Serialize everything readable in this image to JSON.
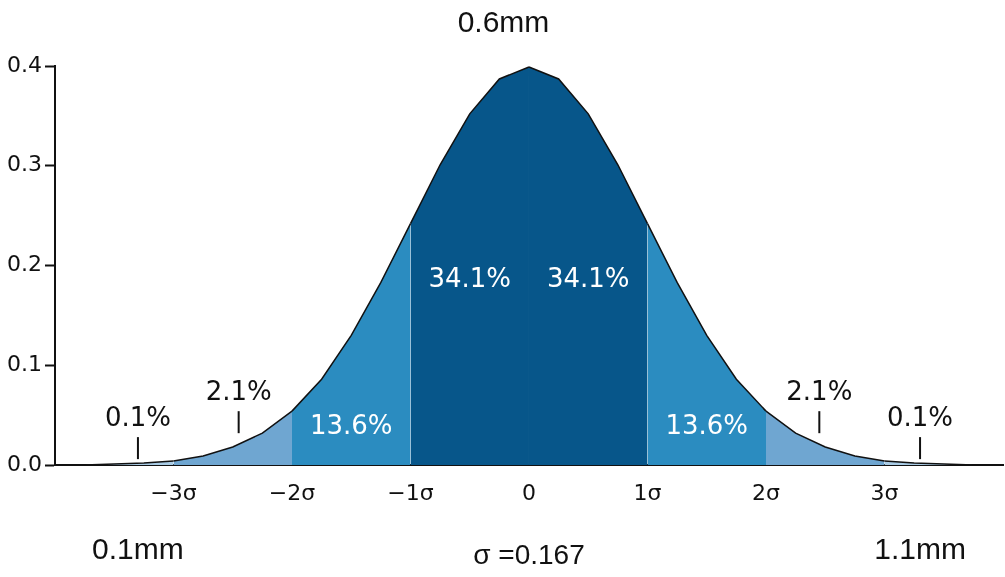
{
  "chart_data": {
    "type": "area",
    "title": "0.6mm",
    "xlabel": "σ =0.167",
    "xlim": [
      -4,
      4
    ],
    "ylim": [
      0,
      0.4
    ],
    "xticks": [
      {
        "value": -3,
        "label": "−3σ"
      },
      {
        "value": -2,
        "label": "−2σ"
      },
      {
        "value": -1,
        "label": "−1σ"
      },
      0,
      {
        "value": 1,
        "label": "1σ"
      },
      {
        "value": 2,
        "label": "2σ"
      },
      {
        "value": 3,
        "label": "3σ"
      }
    ],
    "yticks": [
      {
        "value": 0,
        "label": "0.0"
      },
      0.1,
      0.2,
      0.3,
      0.4
    ],
    "grid": false,
    "legend": false,
    "series": [
      {
        "color": "#a9cce6",
        "x": [
          -4,
          -3.75,
          -3.5,
          -3.25,
          -3
        ],
        "values": [
          0,
          0,
          0.001,
          0.002,
          0.004
        ]
      },
      {
        "color": "#6fa6d1",
        "x": [
          -3,
          -2.75,
          -2.5,
          -2.25,
          -2
        ],
        "values": [
          0.004,
          0.009,
          0.018,
          0.032,
          0.054
        ]
      },
      {
        "color": "#2b8cc0",
        "x": [
          -2,
          -1.75,
          -1.5,
          -1.25,
          -1
        ],
        "values": [
          0.054,
          0.086,
          0.13,
          0.183,
          0.242
        ]
      },
      {
        "color": "#07568a",
        "x": [
          -1,
          -0.75,
          -0.5,
          -0.25,
          0
        ],
        "values": [
          0.242,
          0.301,
          0.352,
          0.387,
          0.399
        ]
      },
      {
        "color": "#07568a",
        "x": [
          0,
          0.25,
          0.5,
          0.75,
          1
        ],
        "values": [
          0.399,
          0.387,
          0.352,
          0.301,
          0.242
        ]
      },
      {
        "color": "#2b8cc0",
        "x": [
          1,
          1.25,
          1.5,
          1.75,
          2
        ],
        "values": [
          0.242,
          0.183,
          0.13,
          0.086,
          0.054
        ]
      },
      {
        "color": "#6fa6d1",
        "x": [
          2,
          2.25,
          2.5,
          2.75,
          3
        ],
        "values": [
          0.054,
          0.032,
          0.018,
          0.009,
          0.004
        ]
      },
      {
        "color": "#a9cce6",
        "x": [
          3,
          3.25,
          3.5,
          3.75,
          4
        ],
        "values": [
          0.004,
          0.002,
          0.001,
          0,
          0
        ]
      }
    ],
    "annotations": [
      "34.1%",
      "34.1%",
      "13.6%",
      "13.6%",
      "2.1%",
      "2.1%",
      "0.1%",
      "0.1%",
      "0.1mm",
      "1.1mm"
    ]
  }
}
